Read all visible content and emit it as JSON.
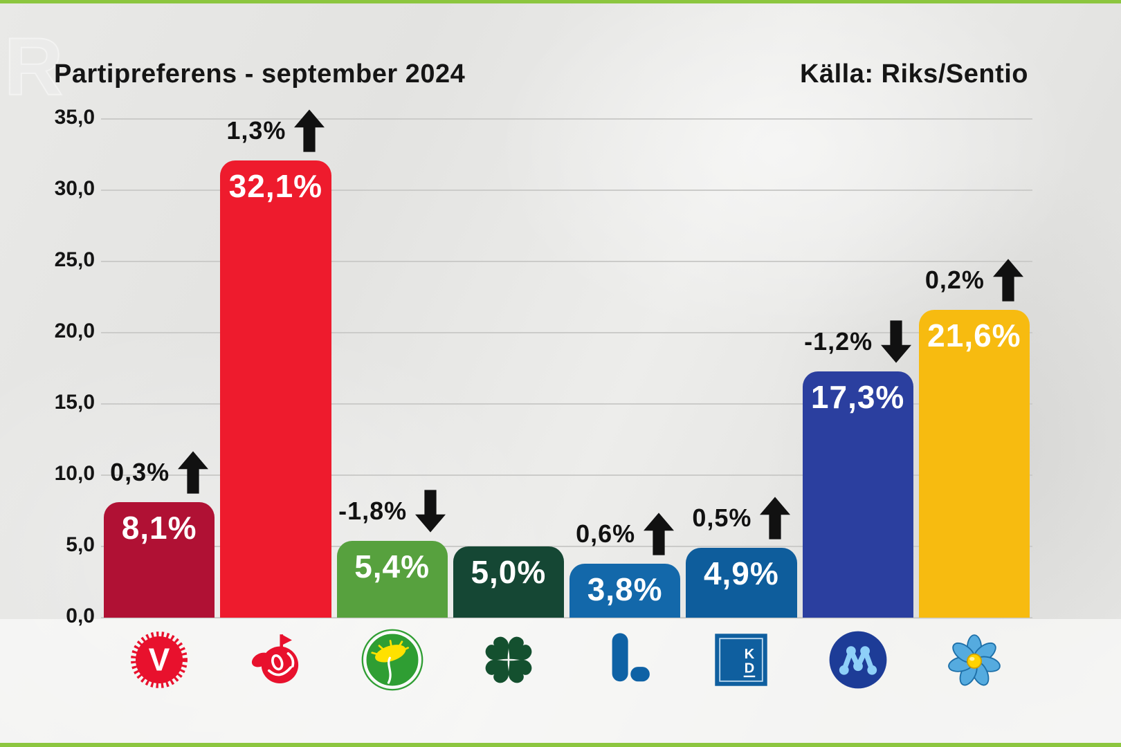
{
  "page": {
    "watermark": "R"
  },
  "header": {
    "title": "Partipreferens - september 2024",
    "source": "Källa: Riks/Sentio"
  },
  "colors": {
    "edge_strip": "#8cc63f",
    "background": "#e6e6e4",
    "gridline": "#cbcbc9",
    "text": "#141414",
    "value_label": "#ffffff",
    "arrow": "#111111"
  },
  "chart_data": {
    "type": "bar",
    "title": "Partipreferens - september 2024",
    "source_label": "Källa: Riks/Sentio",
    "ylabel": "",
    "xlabel": "",
    "ylim": [
      0,
      35
    ],
    "grid": true,
    "yticks": [
      "35,0",
      "30,0",
      "25,0",
      "20,0",
      "15,0",
      "10,0",
      "5,0",
      "0,0"
    ],
    "categories": [
      "V",
      "S",
      "MP",
      "C",
      "L",
      "KD",
      "M",
      "SD"
    ],
    "values": [
      8.1,
      32.1,
      5.4,
      5.0,
      3.8,
      4.9,
      17.3,
      21.6
    ],
    "changes": [
      0.3,
      1.3,
      -1.8,
      null,
      0.6,
      0.5,
      -1.2,
      0.2
    ],
    "bars": [
      {
        "party": "V",
        "value": 8.1,
        "value_label": "8,1%",
        "change": 0.3,
        "change_label": "0,3%",
        "direction": "up",
        "color": "#b01134",
        "logo": "v-carnation-logo"
      },
      {
        "party": "S",
        "value": 32.1,
        "value_label": "32,1%",
        "change": 1.3,
        "change_label": "1,3%",
        "direction": "up",
        "color": "#ee1b2d",
        "logo": "s-rose-logo"
      },
      {
        "party": "MP",
        "value": 5.4,
        "value_label": "5,4%",
        "change": -1.8,
        "change_label": "-1,8%",
        "direction": "down",
        "color": "#57a13e",
        "logo": "mp-dandelion-logo"
      },
      {
        "party": "C",
        "value": 5.0,
        "value_label": "5,0%",
        "change": null,
        "change_label": "",
        "direction": "none",
        "color": "#154734",
        "logo": "c-clover-logo"
      },
      {
        "party": "L",
        "value": 3.8,
        "value_label": "3,8%",
        "change": 0.6,
        "change_label": "0,6%",
        "direction": "up",
        "color": "#1368aa",
        "logo": "l-letter-logo"
      },
      {
        "party": "KD",
        "value": 4.9,
        "value_label": "4,9%",
        "change": 0.5,
        "change_label": "0,5%",
        "direction": "up",
        "color": "#0e5d9c",
        "logo": "kd-square-logo"
      },
      {
        "party": "M",
        "value": 17.3,
        "value_label": "17,3%",
        "change": -1.2,
        "change_label": "-1,2%",
        "direction": "down",
        "color": "#2b3f9f",
        "logo": "m-monogram-logo"
      },
      {
        "party": "SD",
        "value": 21.6,
        "value_label": "21,6%",
        "change": 0.2,
        "change_label": "0,2%",
        "direction": "up",
        "color": "#f7bb10",
        "logo": "sd-anemone-logo"
      }
    ],
    "legend": null,
    "legend_position": "none"
  }
}
